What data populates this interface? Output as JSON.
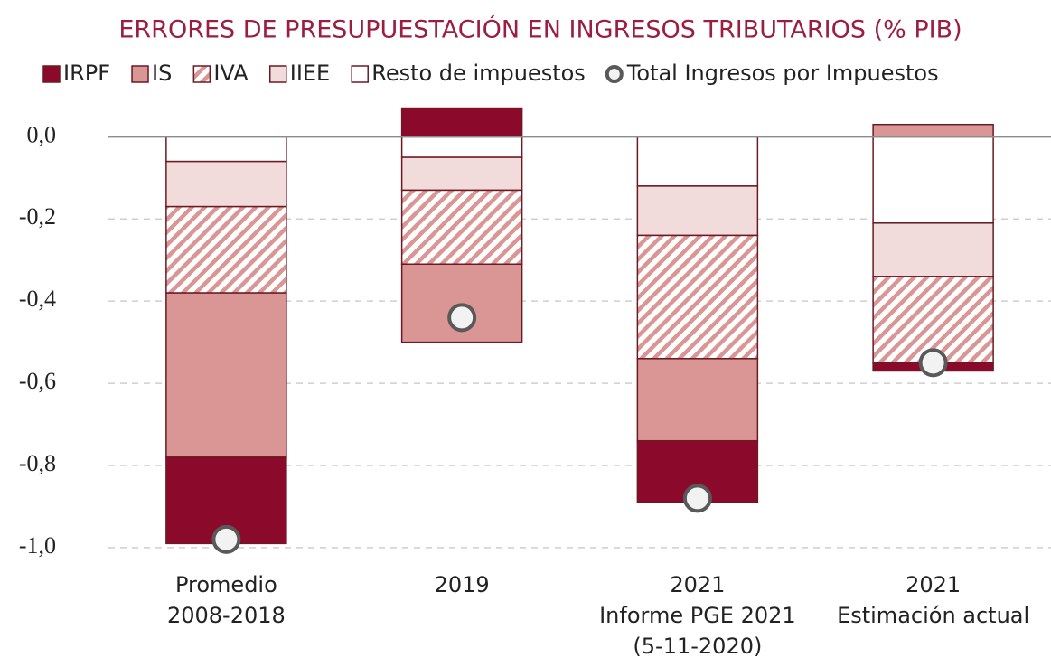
{
  "chart_data": {
    "type": "stacked-bar",
    "title": "ERRORES DE PRESUPUESTACIÓN EN INGRESOS TRIBUTARIOS (% PIB)",
    "categories": [
      "Promedio\n2008-2018",
      "2019",
      "2021\nInforme PGE 2021\n(5-11-2020)",
      "2021\nEstimación actual"
    ],
    "series": [
      {
        "name": "IRPF",
        "color": "#8b0a2c",
        "values": [
          -0.21,
          0.07,
          -0.15,
          -0.02
        ]
      },
      {
        "name": "IS",
        "color": "#d99694",
        "values": [
          -0.4,
          -0.19,
          -0.2,
          0.03
        ]
      },
      {
        "name": "IVA",
        "color": "#d99694",
        "hatch": true,
        "values": [
          -0.21,
          -0.18,
          -0.3,
          -0.21
        ]
      },
      {
        "name": "IIEE",
        "color": "#f2dcdb",
        "values": [
          -0.11,
          -0.08,
          -0.12,
          -0.13
        ]
      },
      {
        "name": "Resto de impuestos",
        "color": "#ffffff",
        "values": [
          -0.06,
          -0.05,
          -0.12,
          -0.21
        ]
      }
    ],
    "total": {
      "name": "Total Ingresos por Impuestos",
      "color": "#f2f2f2",
      "values": [
        -0.98,
        -0.44,
        -0.88,
        -0.55
      ]
    },
    "ylim": [
      -1.02,
      0.08
    ],
    "yticks": [
      {
        "value": 0,
        "label": "0,0"
      },
      {
        "value": -0.2,
        "label": "-0,2"
      },
      {
        "value": -0.4,
        "label": "-0,4"
      },
      {
        "value": -0.6,
        "label": "-0,6"
      },
      {
        "value": -0.8,
        "label": "-0,8"
      },
      {
        "value": -1.0,
        "label": "-1,0"
      }
    ],
    "grid": true
  }
}
